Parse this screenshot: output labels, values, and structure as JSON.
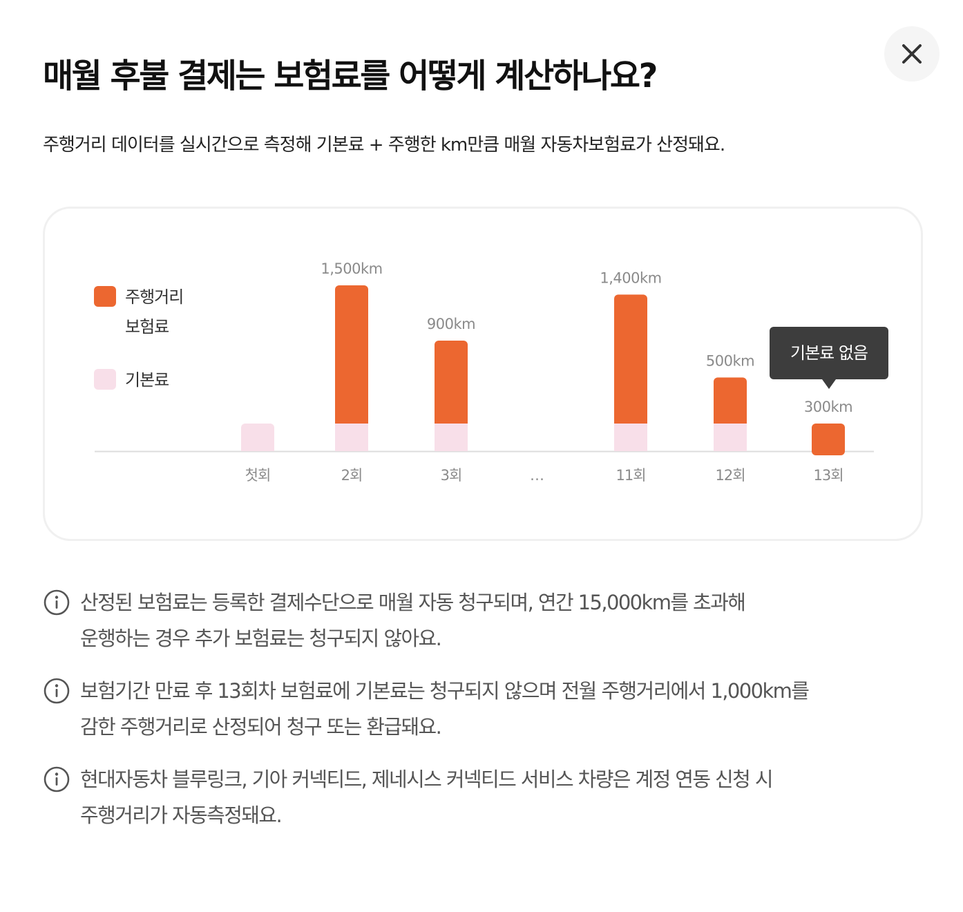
{
  "title": "매월 후불 결제는 보험료를 어떻게 계산하나요?",
  "subtitle": "주행거리 데이터를 실시간으로 측정해 기본료 + 주행한 km만큼 매월 자동차보험료가 산정돼요.",
  "close_icon": "close-icon",
  "colors": {
    "mileage": "#ec6730",
    "base": "#f8dfe9",
    "tooltip_bg": "#3d3d3d",
    "baseline": "#dddddd"
  },
  "chart_data": {
    "type": "bar",
    "stacked": true,
    "categories": [
      "첫회",
      "2회",
      "3회",
      "…",
      "11회",
      "12회",
      "13회"
    ],
    "series": [
      {
        "name": "기본료",
        "color": "#f8dfe9",
        "values": [
          1,
          1,
          1,
          null,
          1,
          1,
          0
        ]
      },
      {
        "name": "주행거리 보험료",
        "color": "#ec6730",
        "values": [
          0,
          1500,
          900,
          null,
          1400,
          500,
          300
        ]
      }
    ],
    "data_labels": [
      "",
      "1,500km",
      "900km",
      "",
      "1,400km",
      "500km",
      "300km"
    ],
    "legend": {
      "placement": "left",
      "items": [
        {
          "label_lines": [
            "주행거리",
            "보험료"
          ],
          "color": "#ec6730"
        },
        {
          "label_lines": [
            "기본료"
          ],
          "color": "#f8dfe9"
        }
      ]
    },
    "annotation": {
      "text": "기본료 없음",
      "category": "13회"
    },
    "grid": false
  },
  "notes": [
    {
      "icon": "info-icon",
      "lines": [
        "산정된 보험료는 등록한 결제수단으로 매월 자동 청구되며, 연간 15,000km를 초과해",
        "운행하는 경우 추가 보험료는 청구되지 않아요."
      ]
    },
    {
      "icon": "info-icon",
      "lines": [
        "보험기간 만료 후 13회차 보험료에 기본료는 청구되지 않으며 전월 주행거리에서 1,000km를",
        "감한 주행거리로 산정되어 청구 또는 환급돼요."
      ]
    },
    {
      "icon": "info-icon",
      "lines": [
        "현대자동차 블루링크, 기아 커넥티드, 제네시스 커넥티드 서비스 차량은 계정 연동 신청 시",
        "주행거리가 자동측정돼요."
      ]
    }
  ]
}
